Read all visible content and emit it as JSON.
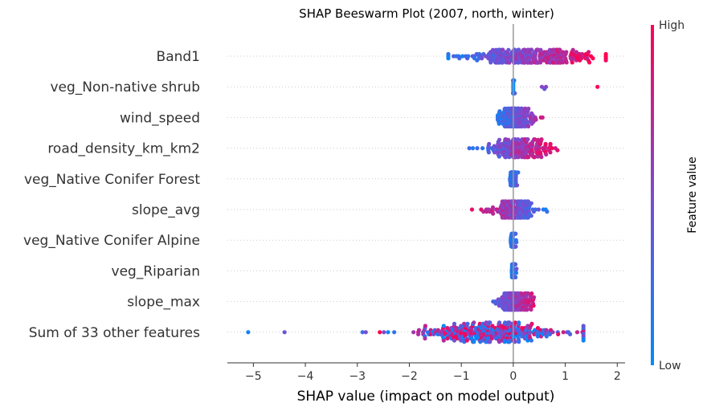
{
  "chart_data": {
    "type": "scatter",
    "subtype": "beeswarm",
    "title": "SHAP Beeswarm Plot (2007, north, winter)",
    "xlabel": "SHAP value (impact on model output)",
    "xlim": [
      -5.5,
      2.15
    ],
    "xticks": [
      -5,
      -4,
      -3,
      -2,
      -1,
      0,
      1,
      2
    ],
    "xtick_labels": [
      "−5",
      "−4",
      "−3",
      "−2",
      "−1",
      "0",
      "1",
      "2"
    ],
    "features": [
      {
        "name": "Band1",
        "min": -1.25,
        "max": 1.78,
        "center": 0.2,
        "spread": 0.62,
        "skew": 0.25,
        "colorTrend": 1,
        "height": 8,
        "n": 260
      },
      {
        "name": "veg_Non-native shrub",
        "min": 0,
        "max": 1.62,
        "center": 0.0,
        "spread": 0.01,
        "skew": 0,
        "colorTrend": 1,
        "height": 8,
        "n": 70,
        "outliers": [
          0.55,
          0.6,
          0.63,
          1.62
        ]
      },
      {
        "name": "wind_speed",
        "min": -0.3,
        "max": 1.0,
        "center": 0.0,
        "spread": 0.15,
        "skew": 0.6,
        "colorTrend": 1,
        "height": 11,
        "n": 180
      },
      {
        "name": "road_density_km_km2",
        "min": -0.85,
        "max": 0.95,
        "center": 0.1,
        "spread": 0.32,
        "skew": 0.1,
        "colorTrend": 1,
        "height": 11,
        "n": 200
      },
      {
        "name": "veg_Native Conifer Forest",
        "min": -0.1,
        "max": 0.72,
        "center": 0.0,
        "spread": 0.03,
        "skew": 0.5,
        "colorTrend": 1,
        "height": 8,
        "n": 110
      },
      {
        "name": "slope_avg",
        "min": -0.85,
        "max": 0.65,
        "center": 0.05,
        "spread": 0.22,
        "skew": -0.2,
        "colorTrend": -1,
        "height": 10,
        "n": 170
      },
      {
        "name": "veg_Native Conifer Alpine",
        "min": -0.05,
        "max": 0.65,
        "center": 0.0,
        "spread": 0.02,
        "skew": 0.5,
        "colorTrend": 1,
        "height": 8,
        "n": 110
      },
      {
        "name": "veg_Riparian",
        "min": -0.05,
        "max": 0.68,
        "center": 0.0,
        "spread": 0.02,
        "skew": 0.5,
        "colorTrend": 1,
        "height": 8,
        "n": 110
      },
      {
        "name": "slope_max",
        "min": -0.6,
        "max": 0.65,
        "center": 0.0,
        "spread": 0.18,
        "skew": 0.2,
        "colorTrend": 1,
        "height": 10,
        "n": 160
      },
      {
        "name": "Sum of 33 other features",
        "min": -2.9,
        "max": 1.35,
        "center": -0.3,
        "spread": 0.75,
        "skew": -0.3,
        "colorTrend": 0,
        "height": 12,
        "n": 320,
        "outliers": [
          -5.1,
          -4.4,
          1.33
        ]
      }
    ],
    "colorbar": {
      "label": "Feature value",
      "high": "High",
      "low": "Low",
      "low_color": "#008bfb",
      "high_color": "#ff0052"
    },
    "zero_line_color": "#999999",
    "grid": "dotted horizontal per feature"
  }
}
